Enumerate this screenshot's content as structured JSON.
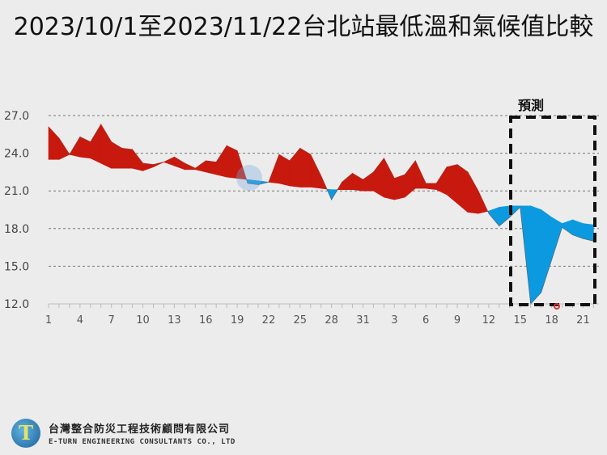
{
  "title": "2023/10/1至2023/11/22台北站最低溫和氣候值比較",
  "forecast_label": "預測",
  "footer": {
    "company_cn": "台灣整合防災工程技術顧問有限公司",
    "company_en": "E-TURN ENGINEERING CONSULTANTS CO., LTD",
    "logo_icon": "eturn-logo-icon"
  },
  "colors": {
    "above": "#c8190e",
    "below": "#0b9ae0",
    "grid": "#777777",
    "background": "#ececec",
    "forecast_box": "#111111"
  },
  "chart_data": {
    "type": "area",
    "title": "2023/10/1至2023/11/22台北站最低溫和氣候值比較",
    "xlabel": "",
    "ylabel": "",
    "ylim": [
      12.0,
      27.0
    ],
    "yticks": [
      "12.0",
      "15.0",
      "18.0",
      "21.0",
      "24.0",
      "27.0"
    ],
    "xtick_labels": [
      "1",
      "4",
      "7",
      "10",
      "13",
      "16",
      "19",
      "22",
      "25",
      "28",
      "31",
      "3",
      "6",
      "9",
      "12",
      "15",
      "18",
      "21"
    ],
    "grid": "horizontal dashed",
    "legend": "none",
    "annotation": {
      "text": "預測",
      "region_start_index": 44,
      "region_end_index": 52
    },
    "x": [
      "10/1",
      "10/2",
      "10/3",
      "10/4",
      "10/5",
      "10/6",
      "10/7",
      "10/8",
      "10/9",
      "10/10",
      "10/11",
      "10/12",
      "10/13",
      "10/14",
      "10/15",
      "10/16",
      "10/17",
      "10/18",
      "10/19",
      "10/20",
      "10/21",
      "10/22",
      "10/23",
      "10/24",
      "10/25",
      "10/26",
      "10/27",
      "10/28",
      "10/29",
      "10/30",
      "10/31",
      "11/1",
      "11/2",
      "11/3",
      "11/4",
      "11/5",
      "11/6",
      "11/7",
      "11/8",
      "11/9",
      "11/10",
      "11/11",
      "11/12",
      "11/13",
      "11/14",
      "11/15",
      "11/16",
      "11/17",
      "11/18",
      "11/19",
      "11/20",
      "11/21",
      "11/22"
    ],
    "series": [
      {
        "name": "最低溫",
        "values": [
          26.1,
          25.2,
          23.9,
          25.3,
          24.9,
          26.3,
          24.9,
          24.4,
          24.3,
          23.2,
          23.1,
          23.3,
          23.7,
          23.2,
          22.8,
          23.4,
          23.3,
          24.6,
          24.2,
          21.6,
          21.5,
          21.7,
          23.9,
          23.4,
          24.4,
          23.9,
          22.2,
          20.3,
          21.7,
          22.4,
          21.9,
          22.5,
          23.6,
          22.0,
          22.3,
          23.4,
          21.6,
          21.6,
          22.9,
          23.1,
          22.5,
          21.0,
          19.2,
          18.2,
          18.9,
          19.7,
          12.0,
          12.9,
          15.5,
          18.1,
          17.5,
          17.2,
          17.0
        ]
      },
      {
        "name": "氣候值",
        "values": [
          23.5,
          23.5,
          23.9,
          23.7,
          23.6,
          23.2,
          22.8,
          22.8,
          22.8,
          22.6,
          22.9,
          23.3,
          23.0,
          22.7,
          22.7,
          22.5,
          22.3,
          22.1,
          22.0,
          21.9,
          21.8,
          21.7,
          21.6,
          21.4,
          21.3,
          21.3,
          21.2,
          21.1,
          21.1,
          21.1,
          21.0,
          21.0,
          20.5,
          20.3,
          20.5,
          21.2,
          21.2,
          21.1,
          20.7,
          20.0,
          19.3,
          19.2,
          19.4,
          19.7,
          19.8,
          19.8,
          19.8,
          19.5,
          18.9,
          18.4,
          18.7,
          18.4,
          18.3
        ]
      }
    ]
  }
}
